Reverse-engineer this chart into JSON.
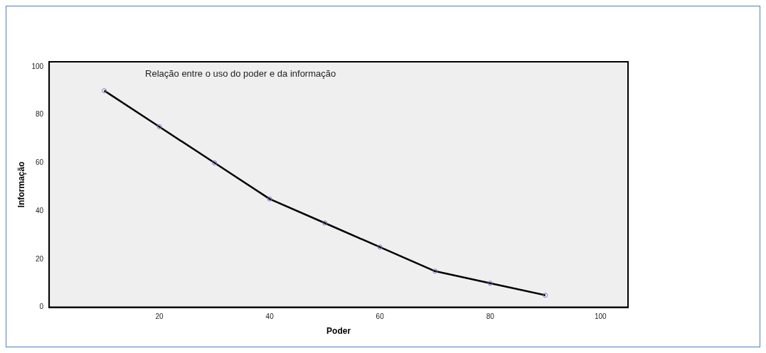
{
  "chart_data": {
    "type": "line",
    "title": "Relação entre o uso do poder e da informação",
    "xlabel": "Poder",
    "ylabel": "Informação",
    "x": [
      10,
      20,
      30,
      40,
      50,
      60,
      70,
      80,
      90
    ],
    "series": [
      {
        "color": "#000000",
        "values": [
          90,
          75,
          60,
          45,
          35,
          25,
          15,
          10,
          5
        ]
      }
    ],
    "xlim": [
      0,
      105
    ],
    "xticks": [
      20,
      40,
      60,
      80,
      100
    ],
    "ylim": [
      0,
      102
    ],
    "yticks": [
      0,
      20,
      40,
      60,
      80,
      100
    ],
    "marker": "circle",
    "line_style": "solid",
    "grid": false,
    "legend": false
  }
}
